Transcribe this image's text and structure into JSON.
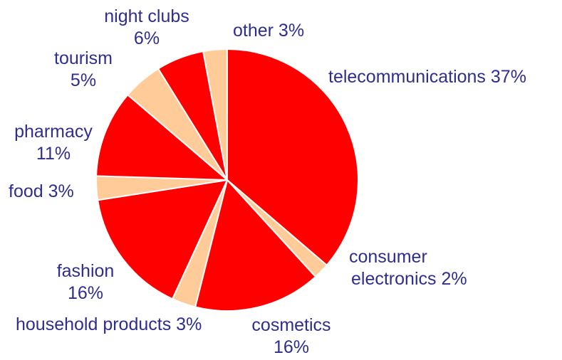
{
  "chart_data": {
    "type": "pie",
    "colors": {
      "primary": "#ff0000",
      "secondary": "#ffcc99",
      "label": "#2e2e8f",
      "edge": "#ffffff"
    },
    "slices": [
      {
        "label": "telecommunications 37%",
        "value": 37,
        "color": "#ff0000"
      },
      {
        "label": "consumer electronics 2%",
        "line1": "consumer",
        "line2": "electronics 2%",
        "value": 2,
        "color": "#ffcc99"
      },
      {
        "label": "cosmetics 16%",
        "line1": "cosmetics",
        "line2": "16%",
        "value": 16,
        "color": "#ff0000"
      },
      {
        "label": "household products 3%",
        "line1": "household products 3%",
        "value": 3,
        "color": "#ffcc99"
      },
      {
        "label": "fashion 16%",
        "line1": "fashion",
        "line2": "16%",
        "value": 16,
        "color": "#ff0000"
      },
      {
        "label": "food 3%",
        "line1": "food 3%",
        "value": 3,
        "color": "#ffcc99"
      },
      {
        "label": "pharmacy 11%",
        "line1": "pharmacy",
        "line2": "11%",
        "value": 11,
        "color": "#ff0000"
      },
      {
        "label": "tourism 5%",
        "line1": "tourism",
        "line2": "5%",
        "value": 5,
        "color": "#ffcc99"
      },
      {
        "label": "night clubs 6%",
        "line1": "night clubs",
        "line2": "6%",
        "value": 6,
        "color": "#ff0000"
      },
      {
        "label": "other 3%",
        "line1": "other 3%",
        "value": 3,
        "color": "#ffcc99"
      }
    ]
  }
}
